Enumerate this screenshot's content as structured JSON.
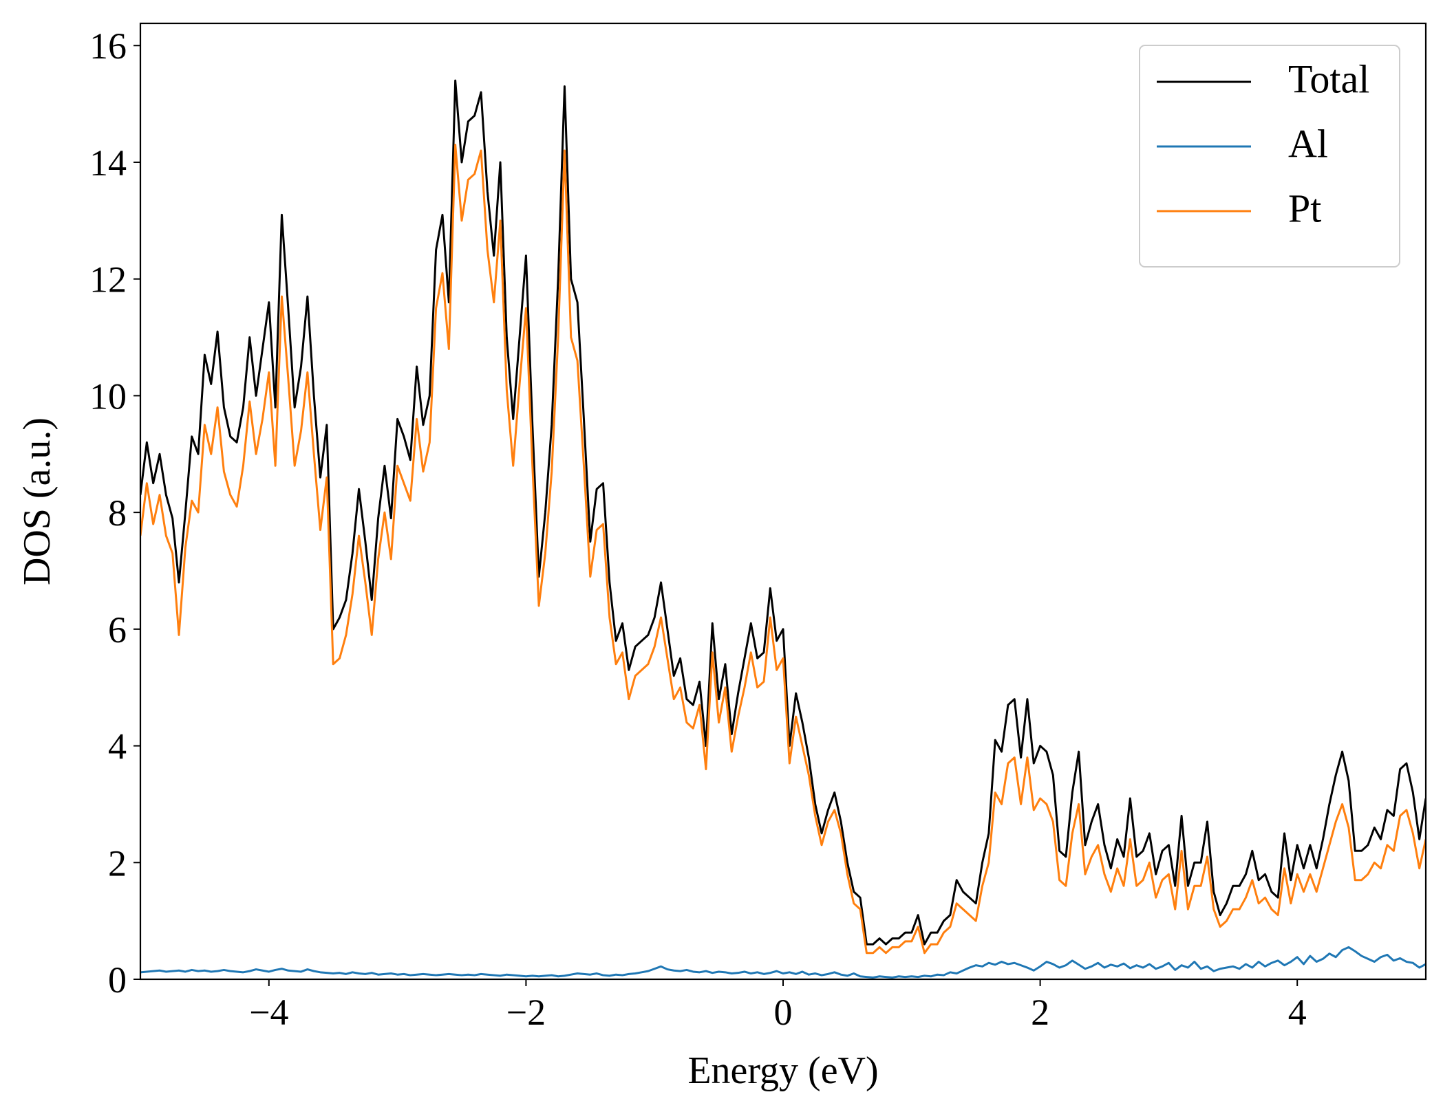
{
  "chart_data": {
    "type": "line",
    "xlabel": "Energy (eV)",
    "ylabel": "DOS (a.u.)",
    "xlim": [
      -5,
      5
    ],
    "ylim": [
      0,
      16.38
    ],
    "xticks": [
      {
        "value": -4,
        "label": "−4"
      },
      {
        "value": -2,
        "label": "−2"
      },
      0,
      2,
      4
    ],
    "yticks": [
      0,
      2,
      4,
      6,
      8,
      10,
      12,
      14,
      16
    ],
    "grid": false,
    "legend": "upper right",
    "x": [
      -5,
      -4.95,
      -4.9,
      -4.85,
      -4.8,
      -4.75,
      -4.7,
      -4.65,
      -4.6,
      -4.55,
      -4.5,
      -4.45,
      -4.4,
      -4.35,
      -4.3,
      -4.25,
      -4.2,
      -4.15,
      -4.1,
      -4.05,
      -4,
      -3.95,
      -3.9,
      -3.85,
      -3.8,
      -3.75,
      -3.7,
      -3.65,
      -3.6,
      -3.55,
      -3.5,
      -3.45,
      -3.4,
      -3.35,
      -3.3,
      -3.25,
      -3.2,
      -3.15,
      -3.1,
      -3.05,
      -3,
      -2.95,
      -2.9,
      -2.85,
      -2.8,
      -2.75,
      -2.7,
      -2.65,
      -2.6,
      -2.55,
      -2.5,
      -2.45,
      -2.4,
      -2.35,
      -2.3,
      -2.25,
      -2.2,
      -2.15,
      -2.1,
      -2.05,
      -2,
      -1.95,
      -1.9,
      -1.85,
      -1.8,
      -1.75,
      -1.7,
      -1.65,
      -1.6,
      -1.55,
      -1.5,
      -1.45,
      -1.4,
      -1.35,
      -1.3,
      -1.25,
      -1.2,
      -1.15,
      -1.1,
      -1.05,
      -1,
      -0.95,
      -0.9,
      -0.85,
      -0.8,
      -0.75,
      -0.7,
      -0.65,
      -0.6,
      -0.55,
      -0.5,
      -0.45,
      -0.4,
      -0.35,
      -0.3,
      -0.25,
      -0.2,
      -0.15,
      -0.1,
      -0.05,
      0,
      0.05,
      0.1,
      0.15,
      0.2,
      0.25,
      0.3,
      0.35,
      0.4,
      0.45,
      0.5,
      0.55,
      0.6,
      0.65,
      0.7,
      0.75,
      0.8,
      0.85,
      0.9,
      0.95,
      1,
      1.05,
      1.1,
      1.15,
      1.2,
      1.25,
      1.3,
      1.35,
      1.4,
      1.45,
      1.5,
      1.55,
      1.6,
      1.65,
      1.7,
      1.75,
      1.8,
      1.85,
      1.9,
      1.95,
      2,
      2.05,
      2.1,
      2.15,
      2.2,
      2.25,
      2.3,
      2.35,
      2.4,
      2.45,
      2.5,
      2.55,
      2.6,
      2.65,
      2.7,
      2.75,
      2.8,
      2.85,
      2.9,
      2.95,
      3,
      3.05,
      3.1,
      3.15,
      3.2,
      3.25,
      3.3,
      3.35,
      3.4,
      3.45,
      3.5,
      3.55,
      3.6,
      3.65,
      3.7,
      3.75,
      3.8,
      3.85,
      3.9,
      3.95,
      4,
      4.05,
      4.1,
      4.15,
      4.2,
      4.25,
      4.3,
      4.35,
      4.4,
      4.45,
      4.5,
      4.55,
      4.6,
      4.65,
      4.7,
      4.75,
      4.8,
      4.85,
      4.9,
      4.95,
      5
    ],
    "series": [
      {
        "name": "Total",
        "color": "#000000",
        "values": [
          8.3,
          9.2,
          8.5,
          9.0,
          8.3,
          7.9,
          6.8,
          8.0,
          9.3,
          9.0,
          10.7,
          10.2,
          11.1,
          9.8,
          9.3,
          9.2,
          9.8,
          11.0,
          10.0,
          10.8,
          11.6,
          9.8,
          13.1,
          11.5,
          9.8,
          10.5,
          11.7,
          10.0,
          8.6,
          9.5,
          6.0,
          6.2,
          6.5,
          7.3,
          8.4,
          7.5,
          6.5,
          7.9,
          8.8,
          7.9,
          9.6,
          9.3,
          8.9,
          10.5,
          9.5,
          10.0,
          12.5,
          13.1,
          11.6,
          15.4,
          14.0,
          14.7,
          14.8,
          15.2,
          13.5,
          12.4,
          14.0,
          11.0,
          9.6,
          11.0,
          12.4,
          9.5,
          6.9,
          8.0,
          9.5,
          12.0,
          15.3,
          12.0,
          11.6,
          9.6,
          7.5,
          8.4,
          8.5,
          6.8,
          5.8,
          6.1,
          5.3,
          5.7,
          5.8,
          5.9,
          6.2,
          6.8,
          6.0,
          5.2,
          5.5,
          4.8,
          4.7,
          5.1,
          4.0,
          6.1,
          4.8,
          5.4,
          4.2,
          4.9,
          5.5,
          6.1,
          5.5,
          5.6,
          6.7,
          5.8,
          6.0,
          4.0,
          4.9,
          4.4,
          3.8,
          3.0,
          2.5,
          2.9,
          3.2,
          2.7,
          2.0,
          1.5,
          1.4,
          0.6,
          0.6,
          0.7,
          0.6,
          0.7,
          0.7,
          0.8,
          0.8,
          1.1,
          0.6,
          0.8,
          0.8,
          1.0,
          1.1,
          1.7,
          1.5,
          1.4,
          1.3,
          2.0,
          2.5,
          4.1,
          3.9,
          4.7,
          4.8,
          3.8,
          4.8,
          3.7,
          4.0,
          3.9,
          3.5,
          2.2,
          2.1,
          3.2,
          3.9,
          2.3,
          2.7,
          3.0,
          2.3,
          1.9,
          2.4,
          2.1,
          3.1,
          2.1,
          2.2,
          2.5,
          1.8,
          2.2,
          2.3,
          1.6,
          2.8,
          1.6,
          2.0,
          2.0,
          2.7,
          1.5,
          1.1,
          1.3,
          1.6,
          1.6,
          1.8,
          2.2,
          1.7,
          1.8,
          1.5,
          1.4,
          2.5,
          1.7,
          2.3,
          1.9,
          2.3,
          1.9,
          2.4,
          3.0,
          3.5,
          3.9,
          3.4,
          2.2,
          2.2,
          2.3,
          2.6,
          2.4,
          2.9,
          2.8,
          3.6,
          3.7,
          3.2,
          2.4,
          3.1
        ]
      },
      {
        "name": "Al",
        "color": "#1f77b4",
        "values": [
          0.12,
          0.13,
          0.14,
          0.15,
          0.13,
          0.14,
          0.15,
          0.13,
          0.16,
          0.14,
          0.15,
          0.13,
          0.14,
          0.16,
          0.14,
          0.13,
          0.12,
          0.14,
          0.17,
          0.15,
          0.13,
          0.16,
          0.18,
          0.15,
          0.14,
          0.13,
          0.17,
          0.14,
          0.12,
          0.11,
          0.1,
          0.11,
          0.09,
          0.12,
          0.1,
          0.09,
          0.11,
          0.08,
          0.09,
          0.1,
          0.08,
          0.09,
          0.07,
          0.08,
          0.09,
          0.08,
          0.07,
          0.08,
          0.09,
          0.08,
          0.07,
          0.08,
          0.07,
          0.09,
          0.08,
          0.07,
          0.06,
          0.08,
          0.07,
          0.06,
          0.05,
          0.06,
          0.05,
          0.06,
          0.07,
          0.05,
          0.06,
          0.08,
          0.1,
          0.09,
          0.08,
          0.1,
          0.07,
          0.06,
          0.08,
          0.07,
          0.09,
          0.1,
          0.12,
          0.14,
          0.18,
          0.22,
          0.17,
          0.15,
          0.14,
          0.16,
          0.13,
          0.12,
          0.14,
          0.11,
          0.13,
          0.12,
          0.1,
          0.11,
          0.13,
          0.1,
          0.12,
          0.09,
          0.11,
          0.14,
          0.1,
          0.12,
          0.09,
          0.13,
          0.08,
          0.1,
          0.07,
          0.09,
          0.12,
          0.08,
          0.06,
          0.1,
          0.05,
          0.04,
          0.03,
          0.05,
          0.04,
          0.03,
          0.05,
          0.04,
          0.05,
          0.04,
          0.06,
          0.05,
          0.08,
          0.07,
          0.12,
          0.1,
          0.15,
          0.2,
          0.24,
          0.22,
          0.28,
          0.25,
          0.3,
          0.26,
          0.28,
          0.24,
          0.2,
          0.15,
          0.22,
          0.3,
          0.26,
          0.2,
          0.24,
          0.32,
          0.25,
          0.18,
          0.22,
          0.28,
          0.2,
          0.25,
          0.22,
          0.27,
          0.19,
          0.24,
          0.2,
          0.26,
          0.18,
          0.22,
          0.28,
          0.16,
          0.24,
          0.2,
          0.3,
          0.18,
          0.22,
          0.14,
          0.18,
          0.2,
          0.22,
          0.18,
          0.26,
          0.2,
          0.3,
          0.22,
          0.28,
          0.32,
          0.24,
          0.3,
          0.38,
          0.26,
          0.4,
          0.3,
          0.35,
          0.44,
          0.38,
          0.5,
          0.55,
          0.48,
          0.4,
          0.35,
          0.3,
          0.38,
          0.42,
          0.32,
          0.36,
          0.3,
          0.28,
          0.2,
          0.26
        ]
      },
      {
        "name": "Pt",
        "color": "#ff7f0e",
        "values": [
          7.6,
          8.5,
          7.8,
          8.3,
          7.6,
          7.3,
          5.9,
          7.4,
          8.2,
          8.0,
          9.5,
          9.0,
          9.8,
          8.7,
          8.3,
          8.1,
          8.8,
          9.9,
          9.0,
          9.6,
          10.4,
          8.8,
          11.7,
          10.3,
          8.8,
          9.4,
          10.4,
          9.0,
          7.7,
          8.6,
          5.4,
          5.5,
          5.9,
          6.6,
          7.6,
          6.8,
          5.9,
          7.2,
          8.0,
          7.2,
          8.8,
          8.5,
          8.2,
          9.6,
          8.7,
          9.2,
          11.5,
          12.1,
          10.8,
          14.3,
          13.0,
          13.7,
          13.8,
          14.2,
          12.5,
          11.6,
          13.0,
          10.1,
          8.8,
          10.2,
          11.5,
          8.8,
          6.4,
          7.3,
          8.7,
          11.0,
          14.2,
          11.0,
          10.6,
          8.8,
          6.9,
          7.7,
          7.8,
          6.2,
          5.4,
          5.6,
          4.8,
          5.2,
          5.3,
          5.4,
          5.7,
          6.2,
          5.5,
          4.8,
          5.0,
          4.4,
          4.3,
          4.7,
          3.6,
          5.6,
          4.4,
          5.0,
          3.9,
          4.5,
          5.0,
          5.6,
          5.0,
          5.1,
          6.2,
          5.3,
          5.5,
          3.7,
          4.5,
          4.0,
          3.5,
          2.8,
          2.3,
          2.7,
          2.9,
          2.5,
          1.8,
          1.3,
          1.2,
          0.45,
          0.45,
          0.55,
          0.45,
          0.55,
          0.55,
          0.65,
          0.65,
          0.9,
          0.45,
          0.6,
          0.6,
          0.8,
          0.9,
          1.3,
          1.2,
          1.1,
          1.0,
          1.6,
          2.0,
          3.2,
          3.0,
          3.7,
          3.8,
          3.0,
          3.8,
          2.9,
          3.1,
          3.0,
          2.7,
          1.7,
          1.6,
          2.5,
          3.0,
          1.8,
          2.1,
          2.3,
          1.8,
          1.5,
          1.9,
          1.6,
          2.4,
          1.6,
          1.7,
          2.0,
          1.4,
          1.7,
          1.8,
          1.2,
          2.2,
          1.2,
          1.6,
          1.6,
          2.1,
          1.2,
          0.9,
          1.0,
          1.2,
          1.2,
          1.4,
          1.7,
          1.3,
          1.4,
          1.2,
          1.1,
          1.9,
          1.3,
          1.8,
          1.5,
          1.8,
          1.5,
          1.9,
          2.3,
          2.7,
          3.0,
          2.6,
          1.7,
          1.7,
          1.8,
          2.0,
          1.9,
          2.3,
          2.2,
          2.8,
          2.9,
          2.5,
          1.9,
          2.4
        ]
      }
    ]
  }
}
